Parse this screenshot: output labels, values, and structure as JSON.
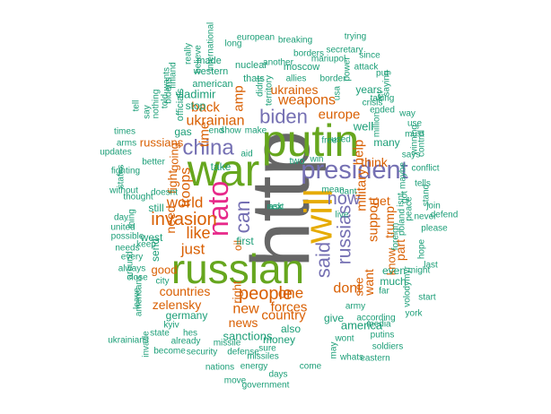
{
  "palette": {
    "teal": "#1b9e77",
    "orange": "#d95f02",
    "purple": "#7570b3",
    "magenta": "#e7298a",
    "green": "#66a61e",
    "gold": "#e6ab02",
    "gray": "#666666"
  },
  "words": [
    {
      "t": "http",
      "c": "gray"
    },
    {
      "t": "war",
      "c": "green"
    },
    {
      "t": "putin",
      "c": "green"
    },
    {
      "t": "russian",
      "c": "green"
    },
    {
      "t": "will",
      "c": "gold"
    },
    {
      "t": "president",
      "c": "purple"
    },
    {
      "t": "nato",
      "c": "magenta"
    },
    {
      "t": "china",
      "c": "purple"
    },
    {
      "t": "biden",
      "c": "purple"
    },
    {
      "t": "said",
      "c": "purple"
    },
    {
      "t": "russias",
      "c": "purple"
    },
    {
      "t": "can",
      "c": "purple"
    },
    {
      "t": "now",
      "c": "purple"
    },
    {
      "t": "ukrainian",
      "c": "orange"
    },
    {
      "t": "invasion",
      "c": "orange"
    },
    {
      "t": "world",
      "c": "orange"
    },
    {
      "t": "people",
      "c": "orange"
    },
    {
      "t": "like",
      "c": "orange"
    },
    {
      "t": "just",
      "c": "orange"
    },
    {
      "t": "dont",
      "c": "orange"
    },
    {
      "t": "weapons",
      "c": "orange"
    },
    {
      "t": "ukraines",
      "c": "orange"
    },
    {
      "t": "europe",
      "c": "orange"
    },
    {
      "t": "military",
      "c": "orange"
    },
    {
      "t": "troops",
      "c": "orange"
    },
    {
      "t": "support",
      "c": "orange"
    },
    {
      "t": "one",
      "c": "orange"
    },
    {
      "t": "new",
      "c": "orange"
    },
    {
      "t": "country",
      "c": "orange"
    },
    {
      "t": "countries",
      "c": "orange"
    },
    {
      "t": "forces",
      "c": "orange"
    },
    {
      "t": "zelensky",
      "c": "orange"
    },
    {
      "t": "news",
      "c": "orange"
    },
    {
      "t": "back",
      "c": "orange"
    },
    {
      "t": "time",
      "c": "orange"
    },
    {
      "t": "amp",
      "c": "orange"
    },
    {
      "t": "help",
      "c": "orange"
    },
    {
      "t": "think",
      "c": "orange"
    },
    {
      "t": "get",
      "c": "orange"
    },
    {
      "t": "trump",
      "c": "orange"
    },
    {
      "t": "know",
      "c": "orange"
    },
    {
      "t": "part",
      "c": "orange"
    },
    {
      "t": "see",
      "c": "orange"
    },
    {
      "t": "want",
      "c": "orange"
    },
    {
      "t": "good",
      "c": "orange"
    },
    {
      "t": "need",
      "c": "orange"
    },
    {
      "t": "fight",
      "c": "orange"
    },
    {
      "t": "going",
      "c": "orange"
    },
    {
      "t": "right",
      "c": "orange"
    },
    {
      "t": "oil",
      "c": "orange"
    },
    {
      "t": "russians",
      "c": "orange"
    },
    {
      "t": "germany",
      "c": "teal"
    },
    {
      "t": "vladimir",
      "c": "teal"
    },
    {
      "t": "gas",
      "c": "teal"
    },
    {
      "t": "stop",
      "c": "teal"
    },
    {
      "t": "take",
      "c": "teal"
    },
    {
      "t": "well",
      "c": "teal"
    },
    {
      "t": "many",
      "c": "teal"
    },
    {
      "t": "years",
      "c": "teal"
    },
    {
      "t": "sanctions",
      "c": "teal"
    },
    {
      "t": "money",
      "c": "teal"
    },
    {
      "t": "also",
      "c": "teal"
    },
    {
      "t": "america",
      "c": "teal"
    },
    {
      "t": "give",
      "c": "teal"
    },
    {
      "t": "much",
      "c": "teal"
    },
    {
      "t": "even",
      "c": "teal"
    },
    {
      "t": "still",
      "c": "teal"
    },
    {
      "t": "west",
      "c": "teal"
    },
    {
      "t": "send",
      "c": "teal"
    },
    {
      "t": "first",
      "c": "teal"
    },
    {
      "t": "two",
      "c": "teal"
    },
    {
      "t": "thats",
      "c": "teal"
    },
    {
      "t": "nuclear",
      "c": "teal"
    },
    {
      "t": "moscow",
      "c": "teal"
    },
    {
      "t": "american",
      "c": "teal"
    },
    {
      "t": "officials",
      "c": "teal"
    },
    {
      "t": "western",
      "c": "teal"
    },
    {
      "t": "made",
      "c": "teal"
    },
    {
      "t": "european",
      "c": "teal"
    },
    {
      "t": "long",
      "c": "teal"
    },
    {
      "t": "international",
      "c": "teal"
    },
    {
      "t": "breaking",
      "c": "teal"
    },
    {
      "t": "trying",
      "c": "teal"
    },
    {
      "t": "secretary",
      "c": "teal"
    },
    {
      "t": "borders",
      "c": "teal"
    },
    {
      "t": "mariupol",
      "c": "teal"
    },
    {
      "t": "another",
      "c": "teal"
    },
    {
      "t": "allies",
      "c": "teal"
    },
    {
      "t": "border",
      "c": "teal"
    },
    {
      "t": "usa",
      "c": "teal"
    },
    {
      "t": "power",
      "c": "teal"
    },
    {
      "t": "attack",
      "c": "teal"
    },
    {
      "t": "since",
      "c": "teal"
    },
    {
      "t": "put",
      "c": "teal"
    },
    {
      "t": "saying",
      "c": "teal"
    },
    {
      "t": "taking",
      "c": "teal"
    },
    {
      "t": "crisis",
      "c": "teal"
    },
    {
      "t": "ended",
      "c": "teal"
    },
    {
      "t": "million",
      "c": "teal"
    },
    {
      "t": "way",
      "c": "teal"
    },
    {
      "t": "use",
      "c": "teal"
    },
    {
      "t": "must",
      "c": "teal"
    },
    {
      "t": "control",
      "c": "teal"
    },
    {
      "t": "winning",
      "c": "teal"
    },
    {
      "t": "conflict",
      "c": "teal"
    },
    {
      "t": "says",
      "c": "teal"
    },
    {
      "t": "tells",
      "c": "teal"
    },
    {
      "t": "stand",
      "c": "teal"
    },
    {
      "t": "join",
      "c": "teal"
    },
    {
      "t": "defend",
      "c": "teal"
    },
    {
      "t": "never",
      "c": "teal"
    },
    {
      "t": "please",
      "c": "teal"
    },
    {
      "t": "hope",
      "c": "teal"
    },
    {
      "t": "last",
      "c": "teal"
    },
    {
      "t": "might",
      "c": "teal"
    },
    {
      "t": "foreign",
      "c": "teal"
    },
    {
      "t": "poland",
      "c": "teal"
    },
    {
      "t": "got",
      "c": "teal"
    },
    {
      "t": "maybe",
      "c": "teal"
    },
    {
      "t": "peace",
      "c": "teal"
    },
    {
      "t": "isnt",
      "c": "teal"
    },
    {
      "t": "live",
      "c": "teal"
    },
    {
      "t": "mean",
      "c": "teal"
    },
    {
      "t": "cant",
      "c": "teal"
    },
    {
      "t": "free",
      "c": "teal"
    },
    {
      "t": "used",
      "c": "teal"
    },
    {
      "t": "let",
      "c": "teal"
    },
    {
      "t": "far",
      "c": "teal"
    },
    {
      "t": "start",
      "c": "teal"
    },
    {
      "t": "volodymyr",
      "c": "teal"
    },
    {
      "t": "york",
      "c": "teal"
    },
    {
      "t": "army",
      "c": "teal"
    },
    {
      "t": "according",
      "c": "teal"
    },
    {
      "t": "putins",
      "c": "teal"
    },
    {
      "t": "media",
      "c": "teal"
    },
    {
      "t": "soldiers",
      "c": "teal"
    },
    {
      "t": "eastern",
      "c": "teal"
    },
    {
      "t": "wont",
      "c": "teal"
    },
    {
      "t": "whats",
      "c": "teal"
    },
    {
      "t": "may",
      "c": "teal"
    },
    {
      "t": "come",
      "c": "teal"
    },
    {
      "t": "missiles",
      "c": "teal"
    },
    {
      "t": "days",
      "c": "teal"
    },
    {
      "t": "government",
      "c": "teal"
    },
    {
      "t": "energy",
      "c": "teal"
    },
    {
      "t": "nations",
      "c": "teal"
    },
    {
      "t": "move",
      "c": "teal"
    },
    {
      "t": "security",
      "c": "teal"
    },
    {
      "t": "become",
      "c": "teal"
    },
    {
      "t": "already",
      "c": "teal"
    },
    {
      "t": "missile",
      "c": "teal"
    },
    {
      "t": "defense",
      "c": "teal"
    },
    {
      "t": "sure",
      "c": "teal"
    },
    {
      "t": "kyiv",
      "c": "teal"
    },
    {
      "t": "hes",
      "c": "teal"
    },
    {
      "t": "state",
      "c": "teal"
    },
    {
      "t": "invade",
      "c": "teal"
    },
    {
      "t": "ukrainians",
      "c": "teal"
    },
    {
      "t": "americans",
      "c": "teal"
    },
    {
      "t": "leave",
      "c": "teal"
    },
    {
      "t": "around",
      "c": "teal"
    },
    {
      "t": "close",
      "c": "teal"
    },
    {
      "t": "always",
      "c": "teal"
    },
    {
      "t": "city",
      "c": "teal"
    },
    {
      "t": "every",
      "c": "teal"
    },
    {
      "t": "needs",
      "c": "teal"
    },
    {
      "t": "possible",
      "c": "teal"
    },
    {
      "t": "united",
      "c": "teal"
    },
    {
      "t": "day",
      "c": "teal"
    },
    {
      "t": "without",
      "c": "teal"
    },
    {
      "t": "states",
      "c": "teal"
    },
    {
      "t": "fighting",
      "c": "teal"
    },
    {
      "t": "updates",
      "c": "teal"
    },
    {
      "t": "times",
      "c": "teal"
    },
    {
      "t": "arms",
      "c": "teal"
    },
    {
      "t": "thought",
      "c": "teal"
    },
    {
      "t": "thing",
      "c": "teal"
    },
    {
      "t": "better",
      "c": "teal"
    },
    {
      "t": "doesnt",
      "c": "teal"
    },
    {
      "t": "keep",
      "c": "teal"
    },
    {
      "t": "tell",
      "c": "teal"
    },
    {
      "t": "say",
      "c": "teal"
    },
    {
      "t": "nothing",
      "c": "teal"
    },
    {
      "t": "told",
      "c": "teal"
    },
    {
      "t": "bidens",
      "c": "teal"
    },
    {
      "t": "wants",
      "c": "teal"
    },
    {
      "t": "finland",
      "c": "teal"
    },
    {
      "t": "really",
      "c": "teal"
    },
    {
      "t": "believe",
      "c": "teal"
    },
    {
      "t": "territory",
      "c": "teal"
    },
    {
      "t": "didnt",
      "c": "teal"
    },
    {
      "t": "show",
      "c": "teal"
    },
    {
      "t": "make",
      "c": "teal"
    },
    {
      "t": "end",
      "c": "teal"
    },
    {
      "t": "aid",
      "c": "teal"
    },
    {
      "t": "win",
      "c": "teal"
    },
    {
      "t": "next",
      "c": "teal"
    },
    {
      "t": "ask",
      "c": "teal"
    }
  ]
}
